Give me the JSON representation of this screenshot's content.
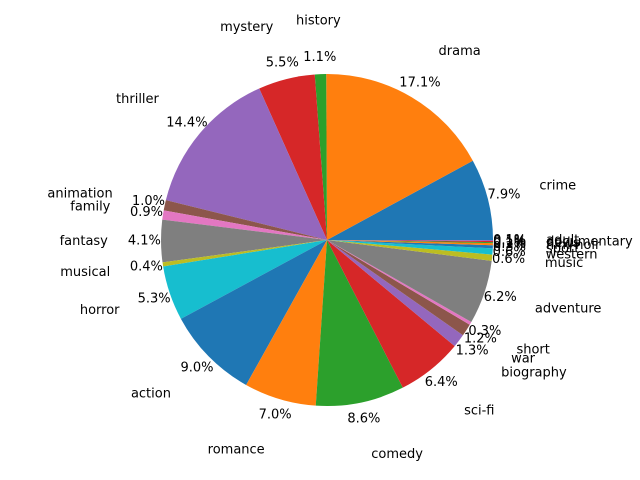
{
  "chart_data": {
    "type": "pie",
    "title": "",
    "start_angle_deg": 0,
    "direction": "counterclockwise",
    "slices": [
      {
        "label": "crime",
        "value": 7.9,
        "pct_text": "7.9%",
        "color": "#1f77b4"
      },
      {
        "label": "drama",
        "value": 17.1,
        "pct_text": "17.1%",
        "color": "#ff7f0e"
      },
      {
        "label": "history",
        "value": 1.1,
        "pct_text": "1.1%",
        "color": "#2ca02c"
      },
      {
        "label": "mystery",
        "value": 5.5,
        "pct_text": "5.5%",
        "color": "#d62728"
      },
      {
        "label": "thriller",
        "value": 14.4,
        "pct_text": "14.4%",
        "color": "#9467bd"
      },
      {
        "label": "animation",
        "value": 1.0,
        "pct_text": "1.0%",
        "color": "#8c564b"
      },
      {
        "label": "family",
        "value": 0.9,
        "pct_text": "0.9%",
        "color": "#e377c2"
      },
      {
        "label": "fantasy",
        "value": 4.1,
        "pct_text": "4.1%",
        "color": "#7f7f7f"
      },
      {
        "label": "musical",
        "value": 0.4,
        "pct_text": "0.4%",
        "color": "#bcbd22"
      },
      {
        "label": "horror",
        "value": 5.3,
        "pct_text": "5.3%",
        "color": "#17becf"
      },
      {
        "label": "action",
        "value": 9.0,
        "pct_text": "9.0%",
        "color": "#1f77b4"
      },
      {
        "label": "romance",
        "value": 7.0,
        "pct_text": "7.0%",
        "color": "#ff7f0e"
      },
      {
        "label": "comedy",
        "value": 8.6,
        "pct_text": "8.6%",
        "color": "#2ca02c"
      },
      {
        "label": "sci-fi",
        "value": 6.4,
        "pct_text": "6.4%",
        "color": "#d62728"
      },
      {
        "label": "biography",
        "value": 1.3,
        "pct_text": "1.3%",
        "color": "#9467bd"
      },
      {
        "label": "war",
        "value": 1.2,
        "pct_text": "1.2%",
        "color": "#8c564b"
      },
      {
        "label": "short",
        "value": 0.3,
        "pct_text": "0.3%",
        "color": "#e377c2"
      },
      {
        "label": "adventure",
        "value": 6.2,
        "pct_text": "6.2%",
        "color": "#7f7f7f"
      },
      {
        "label": "music",
        "value": 0.6,
        "pct_text": "0.6%",
        "color": "#bcbd22"
      },
      {
        "label": "western",
        "value": 0.6,
        "pct_text": "0.6%",
        "color": "#17becf"
      },
      {
        "label": "sport",
        "value": 0.3,
        "pct_text": "0.3%",
        "color": "#1f77b4"
      },
      {
        "label": "film-noir",
        "value": 0.2,
        "pct_text": "0.2%",
        "color": "#ff7f0e"
      },
      {
        "label": "news",
        "value": 0.1,
        "pct_text": "0.1%",
        "color": "#2ca02c"
      },
      {
        "label": "documentary",
        "value": 0.1,
        "pct_text": "0.1%",
        "color": "#d62728"
      },
      {
        "label": "adult",
        "value": 0.1,
        "pct_text": "0.1%",
        "color": "#9467bd"
      }
    ]
  }
}
